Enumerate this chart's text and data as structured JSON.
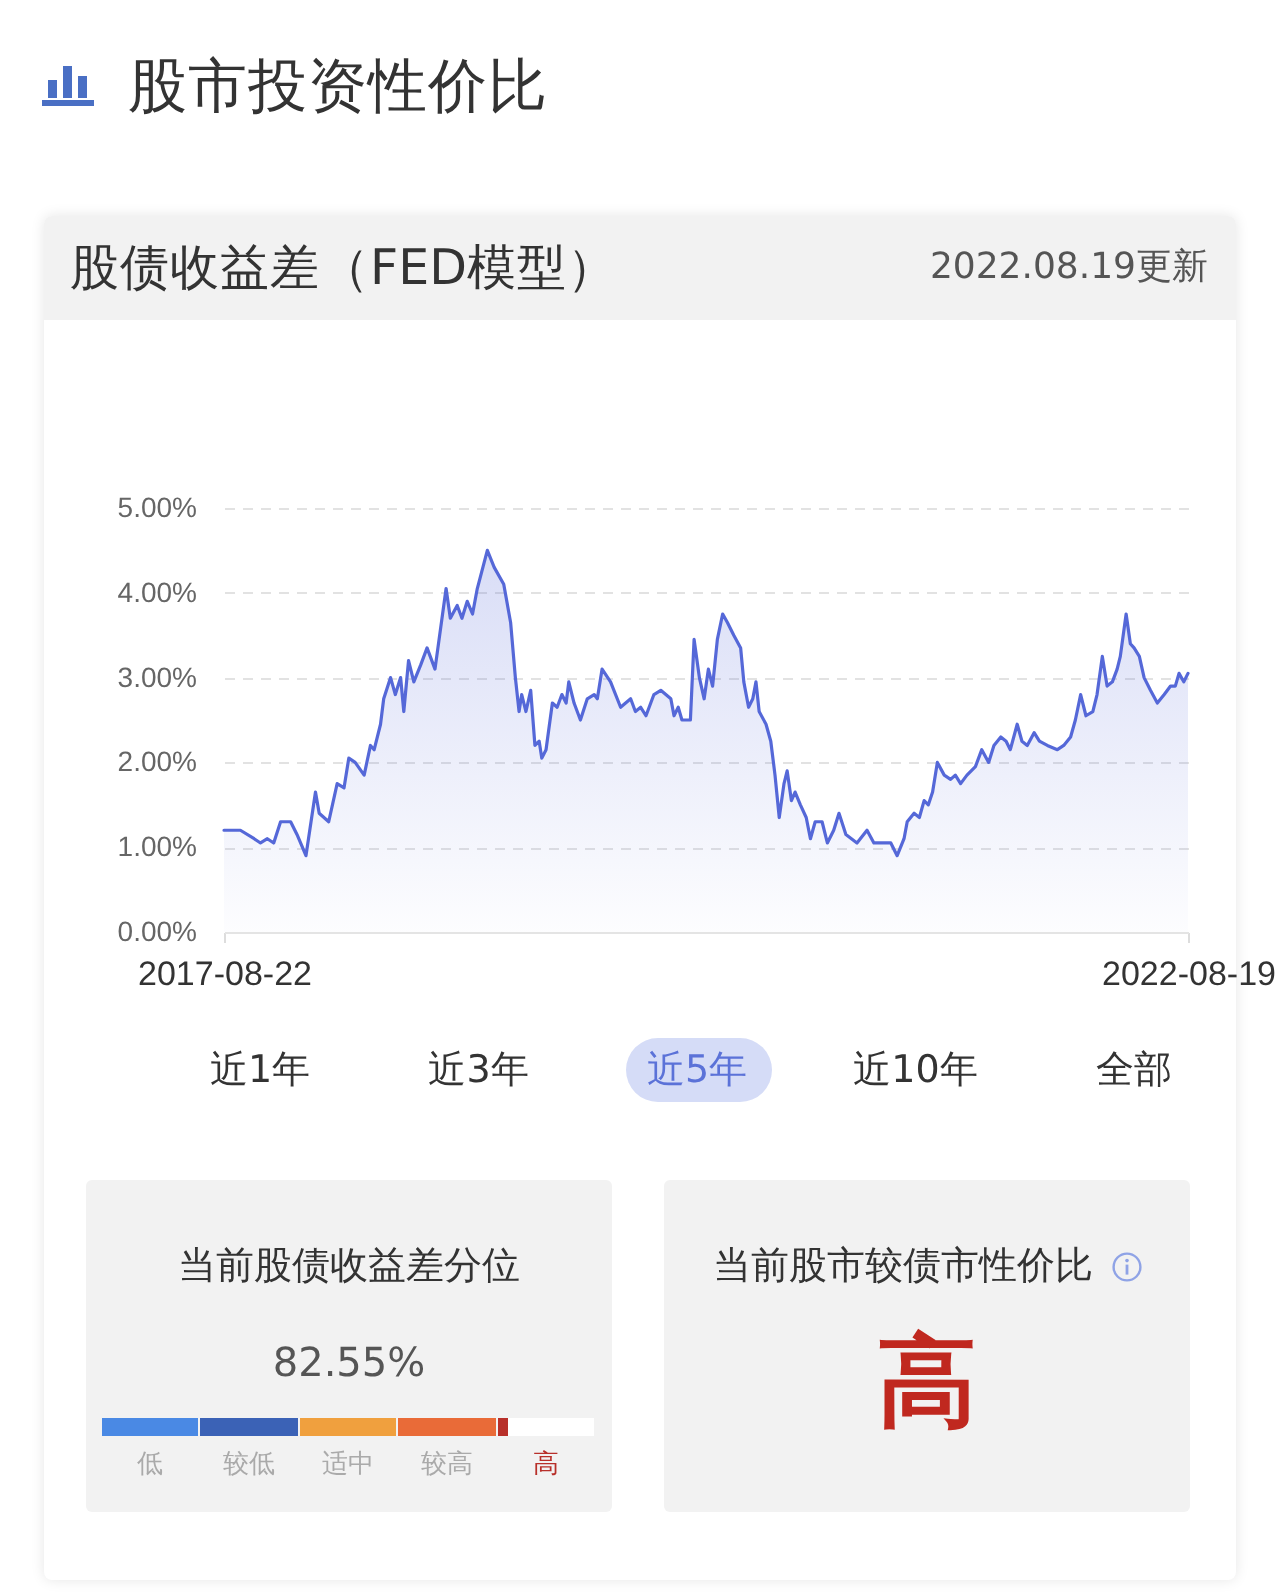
{
  "chart_data": [
    {
      "type": "area",
      "title": "股市投资性价比",
      "subtitle": "股债收益差（FED模型）",
      "annotations": [
        "2022.08.19更新",
        "近1年",
        "近3年",
        "近5年",
        "近10年",
        "全部"
      ],
      "x": [
        "2017-08-22",
        "2017-09-03",
        "2017-09-22",
        "2017-10-18",
        "2017-10-30",
        "2017-11-12",
        "2017-11-24",
        "2017-12-07",
        "2017-12-26",
        "2018-01-07",
        "2018-01-24",
        "2018-02-11",
        "2018-02-18",
        "2018-03-08",
        "2018-03-24",
        "2018-04-06",
        "2018-04-15",
        "2018-04-27",
        "2018-05-14",
        "2018-05-26",
        "2018-06-02",
        "2018-06-14",
        "2018-06-20",
        "2018-07-03",
        "2018-07-12",
        "2018-07-22",
        "2018-07-28",
        "2018-08-06",
        "2018-08-16",
        "2018-08-29",
        "2018-09-10",
        "2018-09-25",
        "2018-10-16",
        "2018-10-24",
        "2018-11-06",
        "2018-11-15",
        "2018-11-25",
        "2018-12-05",
        "2018-12-14",
        "2019-01-02",
        "2019-01-15",
        "2019-02-02",
        "2019-02-15",
        "2019-02-24",
        "2019-03-03",
        "2019-03-08",
        "2019-03-16",
        "2019-03-25",
        "2019-04-02",
        "2019-04-10",
        "2019-04-15",
        "2019-04-23",
        "2019-05-05",
        "2019-05-14",
        "2019-05-23",
        "2019-05-31",
        "2019-06-05",
        "2019-06-15",
        "2019-06-27",
        "2019-07-10",
        "2019-07-23",
        "2019-07-29",
        "2019-08-07",
        "2019-08-23",
        "2019-09-11",
        "2019-09-30",
        "2019-10-09",
        "2019-10-19",
        "2019-10-29",
        "2019-11-13",
        "2019-11-26",
        "2019-12-15",
        "2019-12-21",
        "2019-12-29",
        "2020-01-05",
        "2020-01-21",
        "2020-01-28",
        "2020-02-07",
        "2020-02-16",
        "2020-02-24",
        "2020-03-03",
        "2020-03-12",
        "2020-03-22",
        "2020-03-31",
        "2020-04-12",
        "2020-04-25",
        "2020-05-01",
        "2020-05-10",
        "2020-05-18",
        "2020-05-24",
        "2020-05-30",
        "2020-06-12",
        "2020-06-21",
        "2020-06-29",
        "2020-07-07",
        "2020-07-16",
        "2020-07-22",
        "2020-07-30",
        "2020-08-06",
        "2020-08-16",
        "2020-08-27",
        "2020-09-04",
        "2020-09-13",
        "2020-09-26",
        "2020-10-06",
        "2020-10-18",
        "2020-10-28",
        "2020-11-10",
        "2020-12-01",
        "2020-12-20",
        "2021-01-02",
        "2021-01-21",
        "2021-02-03",
        "2021-02-15",
        "2021-02-28",
        "2021-03-06",
        "2021-03-19",
        "2021-03-29",
        "2021-04-07",
        "2021-04-15",
        "2021-04-23",
        "2021-05-02",
        "2021-05-15",
        "2021-05-27",
        "2021-06-05",
        "2021-06-15",
        "2021-06-27",
        "2021-07-13",
        "2021-07-25",
        "2021-08-07",
        "2021-08-17",
        "2021-08-30",
        "2021-09-09",
        "2021-09-17",
        "2021-09-30",
        "2021-10-09",
        "2021-10-19",
        "2021-11-01",
        "2021-11-11",
        "2021-11-26",
        "2021-12-15",
        "2021-12-27",
        "2022-01-09",
        "2022-01-18",
        "2022-01-28",
        "2022-02-07",
        "2022-02-20",
        "2022-02-28",
        "2022-03-10",
        "2022-03-19",
        "2022-03-29",
        "2022-04-07",
        "2022-04-13",
        "2022-04-24",
        "2022-05-02",
        "2022-05-09",
        "2022-05-19",
        "2022-05-28",
        "2022-06-09",
        "2022-06-22",
        "2022-07-05",
        "2022-07-17",
        "2022-07-26",
        "2022-08-02",
        "2022-08-11",
        "2022-08-19"
      ],
      "series": [
        {
          "color": "#5568d8",
          "values": [
            1.2,
            1.2,
            1.2,
            1.1,
            1.05,
            1.1,
            1.05,
            1.3,
            1.3,
            1.15,
            0.9,
            1.65,
            1.4,
            1.3,
            1.75,
            1.7,
            2.05,
            2.0,
            1.85,
            2.2,
            2.15,
            2.45,
            2.75,
            3.0,
            2.8,
            3.0,
            2.6,
            3.2,
            2.95,
            3.15,
            3.35,
            3.1,
            4.05,
            3.7,
            3.85,
            3.7,
            3.9,
            3.75,
            4.05,
            4.5,
            4.3,
            4.1,
            3.65,
            3.0,
            2.6,
            2.8,
            2.6,
            2.85,
            2.2,
            2.25,
            2.05,
            2.15,
            2.7,
            2.65,
            2.8,
            2.7,
            2.95,
            2.7,
            2.5,
            2.75,
            2.8,
            2.75,
            3.1,
            2.95,
            2.65,
            2.75,
            2.6,
            2.65,
            2.55,
            2.8,
            2.85,
            2.75,
            2.55,
            2.65,
            2.5,
            2.5,
            3.45,
            3.0,
            2.75,
            3.1,
            2.9,
            3.45,
            3.75,
            3.65,
            3.5,
            3.35,
            2.95,
            2.65,
            2.75,
            2.95,
            2.6,
            2.45,
            2.25,
            1.85,
            1.35,
            1.75,
            1.9,
            1.55,
            1.65,
            1.5,
            1.35,
            1.1,
            1.3,
            1.3,
            1.05,
            1.2,
            1.4,
            1.15,
            1.05,
            1.2,
            1.05,
            1.05,
            1.05,
            0.9,
            1.1,
            1.3,
            1.4,
            1.35,
            1.55,
            1.5,
            1.65,
            2.0,
            1.85,
            1.8,
            1.85,
            1.75,
            1.85,
            1.95,
            2.15,
            2.0,
            2.2,
            2.3,
            2.25,
            2.15,
            2.45,
            2.25,
            2.2,
            2.35,
            2.25,
            2.2,
            2.15,
            2.2,
            2.3,
            2.5,
            2.8,
            2.55,
            2.6,
            2.8,
            3.25,
            2.9,
            2.95,
            3.1,
            3.25,
            3.75,
            3.4,
            3.35,
            3.25,
            3.0,
            2.85,
            2.7,
            2.8,
            2.9,
            2.9,
            3.05,
            2.95,
            3.05
          ]
        }
      ],
      "xlim": [
        "2017-08-22",
        "2022-08-19"
      ],
      "xticks": [
        "2017-08-22",
        "2022-08-19"
      ],
      "ylim": [
        0,
        5
      ],
      "yticks": [
        {
          "value": 0,
          "label": "0.00%"
        },
        {
          "value": 1,
          "label": "1.00%"
        },
        {
          "value": 2,
          "label": "2.00%"
        },
        {
          "value": 3,
          "label": "3.00%"
        },
        {
          "value": 4,
          "label": "4.00%"
        },
        {
          "value": 5,
          "label": "5.00%"
        }
      ],
      "grid": "y"
    },
    {
      "type": "other",
      "title": "当前股债收益差分位",
      "values": [
        82.55
      ],
      "value_labels": [
        "82.55%"
      ],
      "annotations": [
        "低",
        "较低",
        "适中",
        "较高",
        "高"
      ]
    },
    {
      "type": "other",
      "title": "当前股市较债市性价比",
      "annotations": [
        "高"
      ]
    }
  ]
}
